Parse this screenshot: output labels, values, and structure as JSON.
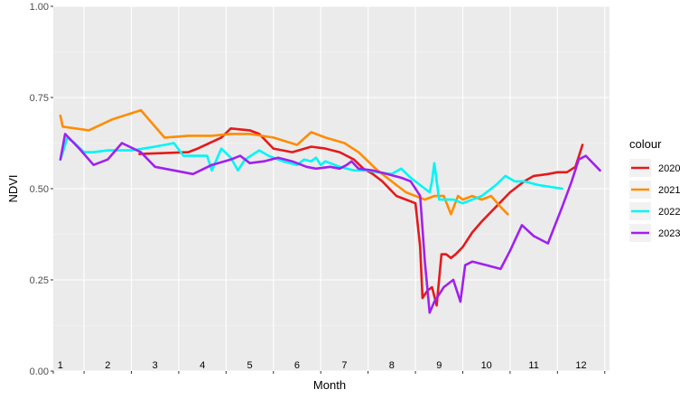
{
  "chart_data": {
    "type": "line",
    "title": "",
    "xlabel": "Month",
    "ylabel": "NDVI",
    "xlim": [
      1,
      12.5
    ],
    "ylim": [
      0,
      1
    ],
    "yticks": [
      0.0,
      0.25,
      0.5,
      0.75,
      1.0
    ],
    "ytick_labels": [
      "0.00",
      "0.25",
      "0.50",
      "0.75",
      "1.00"
    ],
    "month_labels": [
      "1",
      "2",
      "3",
      "4",
      "5",
      "6",
      "7",
      "8",
      "9",
      "10",
      "11",
      "12"
    ],
    "grid": true,
    "legend": {
      "title": "colour",
      "position": "right"
    },
    "series": [
      {
        "name": "2020",
        "color": "#e41a1c",
        "x": [
          2.67,
          3.7,
          3.9,
          4.4,
          4.6,
          5.0,
          5.2,
          5.5,
          5.9,
          6.3,
          6.6,
          6.9,
          7.2,
          7.4,
          7.6,
          7.8,
          7.95,
          8.1,
          8.3,
          8.5,
          8.6,
          8.65,
          8.75,
          8.85,
          8.95,
          9.05,
          9.15,
          9.25,
          9.35,
          9.5,
          9.7,
          9.9,
          10.2,
          10.5,
          10.8,
          11.0,
          11.3,
          11.5,
          11.7,
          11.88,
          12.03
        ],
        "y": [
          0.595,
          0.6,
          0.61,
          0.64,
          0.665,
          0.66,
          0.65,
          0.61,
          0.6,
          0.615,
          0.61,
          0.6,
          0.58,
          0.555,
          0.54,
          0.52,
          0.5,
          0.48,
          0.47,
          0.46,
          0.34,
          0.2,
          0.22,
          0.23,
          0.18,
          0.32,
          0.32,
          0.31,
          0.32,
          0.34,
          0.38,
          0.41,
          0.45,
          0.49,
          0.52,
          0.535,
          0.54,
          0.545,
          0.545,
          0.56,
          0.62
        ]
      },
      {
        "name": "2021",
        "color": "#ff8c00",
        "x": [
          1.0,
          1.05,
          1.6,
          2.1,
          2.7,
          3.2,
          3.7,
          4.2,
          4.6,
          5.0,
          5.5,
          6.0,
          6.3,
          6.6,
          7.0,
          7.3,
          7.5,
          7.7,
          7.9,
          8.1,
          8.3,
          8.5,
          8.7,
          8.9,
          9.1,
          9.25,
          9.4,
          9.5,
          9.7,
          9.9,
          10.1,
          10.3,
          10.45
        ],
        "y": [
          0.7,
          0.67,
          0.66,
          0.69,
          0.715,
          0.64,
          0.645,
          0.645,
          0.65,
          0.65,
          0.64,
          0.62,
          0.655,
          0.64,
          0.625,
          0.6,
          0.575,
          0.55,
          0.53,
          0.51,
          0.49,
          0.48,
          0.47,
          0.48,
          0.48,
          0.43,
          0.48,
          0.47,
          0.48,
          0.47,
          0.48,
          0.45,
          0.43
        ]
      },
      {
        "name": "2022",
        "color": "#00f5f5",
        "x": [
          1.0,
          1.15,
          1.3,
          1.5,
          1.7,
          2.0,
          2.5,
          3.0,
          3.4,
          3.6,
          3.8,
          4.1,
          4.2,
          4.4,
          4.6,
          4.75,
          4.9,
          5.2,
          5.4,
          5.7,
          6.0,
          6.15,
          6.3,
          6.4,
          6.5,
          6.6,
          6.9,
          7.2,
          7.5,
          7.7,
          8.0,
          8.2,
          8.4,
          8.6,
          8.7,
          8.8,
          8.85,
          8.9,
          9.0,
          9.1,
          9.3,
          9.5,
          9.7,
          9.9,
          10.2,
          10.4,
          10.6,
          10.8,
          11.1,
          11.6
        ],
        "y": [
          0.58,
          0.64,
          0.625,
          0.6,
          0.6,
          0.605,
          0.605,
          0.615,
          0.625,
          0.59,
          0.59,
          0.59,
          0.55,
          0.61,
          0.585,
          0.55,
          0.58,
          0.605,
          0.59,
          0.575,
          0.565,
          0.58,
          0.575,
          0.585,
          0.565,
          0.575,
          0.56,
          0.55,
          0.55,
          0.545,
          0.54,
          0.555,
          0.53,
          0.51,
          0.5,
          0.49,
          0.52,
          0.57,
          0.47,
          0.47,
          0.47,
          0.46,
          0.47,
          0.48,
          0.51,
          0.535,
          0.52,
          0.52,
          0.51,
          0.5
        ]
      },
      {
        "name": "2023",
        "color": "#a020f0",
        "x": [
          1.0,
          1.1,
          1.4,
          1.7,
          2.0,
          2.3,
          2.7,
          3.0,
          3.4,
          3.8,
          4.2,
          4.6,
          4.8,
          5.0,
          5.3,
          5.6,
          5.9,
          6.2,
          6.4,
          6.7,
          6.9,
          7.05,
          7.15,
          7.3,
          7.6,
          7.9,
          8.2,
          8.4,
          8.5,
          8.6,
          8.7,
          8.8,
          8.9,
          9.0,
          9.1,
          9.2,
          9.3,
          9.45,
          9.55,
          9.7,
          10.0,
          10.3,
          10.5,
          10.75,
          11.0,
          11.3,
          11.6,
          11.8,
          11.95,
          12.1,
          12.4
        ],
        "y": [
          0.58,
          0.65,
          0.61,
          0.565,
          0.58,
          0.625,
          0.6,
          0.56,
          0.55,
          0.54,
          0.565,
          0.58,
          0.59,
          0.57,
          0.575,
          0.585,
          0.575,
          0.56,
          0.555,
          0.56,
          0.555,
          0.565,
          0.575,
          0.555,
          0.55,
          0.54,
          0.53,
          0.52,
          0.5,
          0.48,
          0.3,
          0.16,
          0.19,
          0.21,
          0.23,
          0.24,
          0.25,
          0.19,
          0.29,
          0.3,
          0.29,
          0.28,
          0.33,
          0.4,
          0.37,
          0.35,
          0.45,
          0.52,
          0.58,
          0.59,
          0.55
        ]
      }
    ]
  }
}
